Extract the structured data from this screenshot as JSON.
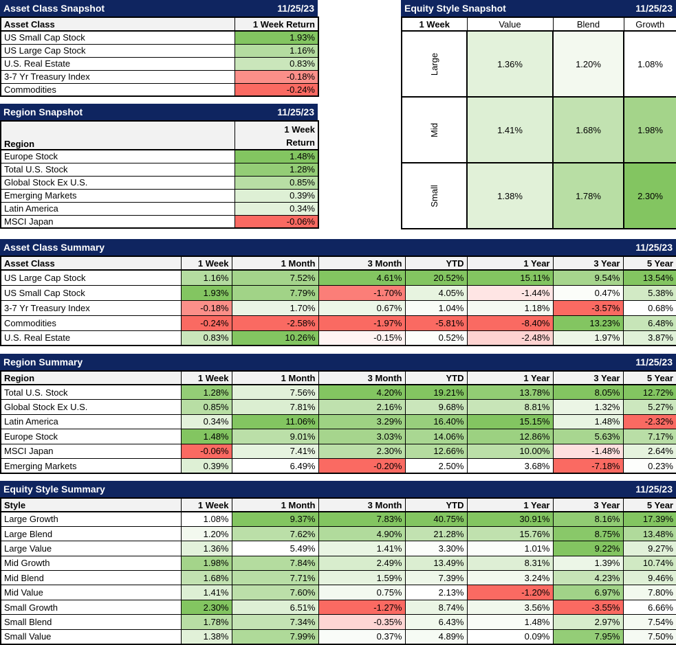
{
  "colors": {
    "title_bar_bg": "#0F2560",
    "title_bar_text": "#FFFFFF",
    "column_header_bg": "#F2F2F2",
    "border": "#000000",
    "scale_green": "#83C561",
    "scale_red": "#FA6A62",
    "scale_neutral": "#FFFFFF"
  },
  "tables": {
    "asset_class_snapshot": {
      "title": "Asset Class Snapshot",
      "date": "11/25/23",
      "label_header": "Asset Class",
      "value_header": "1 Week Return",
      "rows": [
        {
          "label": "US Small Cap Stock",
          "values": [
            1.93
          ]
        },
        {
          "label": "US Large Cap Stock",
          "values": [
            1.16
          ]
        },
        {
          "label": "U.S. Real Estate",
          "values": [
            0.83
          ]
        },
        {
          "label": "3-7 Yr Treasury Index",
          "values": [
            -0.18
          ]
        },
        {
          "label": "Commodities",
          "values": [
            -0.24
          ]
        }
      ]
    },
    "region_snapshot": {
      "title": "Region Snapshot",
      "date": "11/25/23",
      "label_header": "Region",
      "value_header_line1": "1 Week",
      "value_header_line2": "Return",
      "rows": [
        {
          "label": "Europe Stock",
          "values": [
            1.48
          ]
        },
        {
          "label": "Total U.S. Stock",
          "values": [
            1.28
          ]
        },
        {
          "label": "Global Stock Ex U.S.",
          "values": [
            0.85
          ]
        },
        {
          "label": "Emerging Markets",
          "values": [
            0.39
          ]
        },
        {
          "label": "Latin America",
          "values": [
            0.34
          ]
        },
        {
          "label": "MSCI Japan",
          "values": [
            -0.06
          ]
        }
      ]
    },
    "equity_style_snapshot": {
      "title": "Equity Style Snapshot",
      "date": "11/25/23",
      "corner_header": "1 Week",
      "col_headers": [
        "Value",
        "Blend",
        "Growth"
      ],
      "row_headers": [
        "Large",
        "Mid",
        "Small"
      ],
      "values": [
        [
          1.36,
          1.2,
          1.08
        ],
        [
          1.41,
          1.68,
          1.98
        ],
        [
          1.38,
          1.78,
          2.3
        ]
      ]
    },
    "asset_class_summary": {
      "title": "Asset Class Summary",
      "date": "11/25/23",
      "label_header": "Asset Class",
      "period_headers": [
        "1 Week",
        "1 Month",
        "3 Month",
        "YTD",
        "1 Year",
        "3 Year",
        "5 Year"
      ],
      "rows": [
        {
          "label": "US Large Cap Stock",
          "values": [
            1.16,
            7.52,
            4.61,
            20.52,
            15.11,
            9.54,
            13.54
          ]
        },
        {
          "label": "US Small Cap Stock",
          "values": [
            1.93,
            7.79,
            -1.7,
            4.05,
            -1.44,
            0.47,
            5.38
          ]
        },
        {
          "label": "3-7 Yr Treasury Index",
          "values": [
            -0.18,
            1.7,
            0.67,
            1.04,
            1.18,
            -3.57,
            0.68
          ]
        },
        {
          "label": "Commodities",
          "values": [
            -0.24,
            -2.58,
            -1.97,
            -5.81,
            -8.4,
            13.23,
            6.48
          ]
        },
        {
          "label": "U.S. Real Estate",
          "values": [
            0.83,
            10.26,
            -0.15,
            0.52,
            -2.48,
            1.97,
            3.87
          ]
        }
      ]
    },
    "region_summary": {
      "title": "Region Summary",
      "date": "11/25/23",
      "label_header": "Region",
      "period_headers": [
        "1 Week",
        "1 Month",
        "3 Month",
        "YTD",
        "1 Year",
        "3 Year",
        "5 Year"
      ],
      "rows": [
        {
          "label": "Total U.S. Stock",
          "values": [
            1.28,
            7.56,
            4.2,
            19.21,
            13.78,
            8.05,
            12.72
          ]
        },
        {
          "label": "Global Stock Ex U.S.",
          "values": [
            0.85,
            7.81,
            2.16,
            9.68,
            8.81,
            1.32,
            5.27
          ]
        },
        {
          "label": "Latin America",
          "values": [
            0.34,
            11.06,
            3.29,
            16.4,
            15.15,
            1.48,
            -2.32
          ]
        },
        {
          "label": "Europe Stock",
          "values": [
            1.48,
            9.01,
            3.03,
            14.06,
            12.86,
            5.63,
            7.17
          ]
        },
        {
          "label": "MSCI Japan",
          "values": [
            -0.06,
            7.41,
            2.3,
            12.66,
            10.0,
            -1.48,
            2.64
          ]
        },
        {
          "label": "Emerging Markets",
          "values": [
            0.39,
            6.49,
            -0.2,
            2.5,
            3.68,
            -7.18,
            0.23
          ]
        }
      ]
    },
    "equity_style_summary": {
      "title": "Equity Style Summary",
      "date": "11/25/23",
      "label_header": "Style",
      "period_headers": [
        "1 Week",
        "1 Month",
        "3 Month",
        "YTD",
        "1 Year",
        "3 Year",
        "5 Year"
      ],
      "rows": [
        {
          "label": "Large Growth",
          "values": [
            1.08,
            9.37,
            7.83,
            40.75,
            30.91,
            8.16,
            17.39
          ]
        },
        {
          "label": "Large Blend",
          "values": [
            1.2,
            7.62,
            4.9,
            21.28,
            15.76,
            8.75,
            13.48
          ]
        },
        {
          "label": "Large Value",
          "values": [
            1.36,
            5.49,
            1.41,
            3.3,
            1.01,
            9.22,
            9.27
          ]
        },
        {
          "label": "Mid Growth",
          "values": [
            1.98,
            7.84,
            2.49,
            13.49,
            8.31,
            1.39,
            10.74
          ]
        },
        {
          "label": "Mid Blend",
          "values": [
            1.68,
            7.71,
            1.59,
            7.39,
            3.24,
            4.23,
            9.46
          ]
        },
        {
          "label": "Mid Value",
          "values": [
            1.41,
            7.6,
            0.75,
            2.13,
            -1.2,
            6.97,
            7.8
          ]
        },
        {
          "label": "Small Growth",
          "values": [
            2.3,
            6.51,
            -1.27,
            8.74,
            3.56,
            -3.55,
            6.66
          ]
        },
        {
          "label": "Small Blend",
          "values": [
            1.78,
            7.34,
            -0.35,
            6.43,
            1.48,
            2.97,
            7.54
          ]
        },
        {
          "label": "Small Value",
          "values": [
            1.38,
            7.99,
            0.37,
            4.89,
            0.09,
            7.95,
            7.5
          ]
        }
      ]
    }
  }
}
